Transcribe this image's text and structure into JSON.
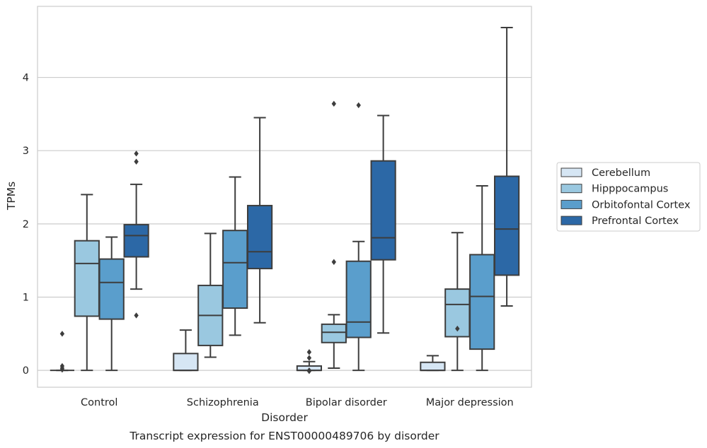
{
  "chart_data": {
    "type": "box",
    "caption": "Transcript expression for ENST00000489706 by disorder",
    "xlabel": "Disorder",
    "ylabel": "TPMs",
    "ylim": [
      -0.23,
      4.97
    ],
    "yticks": [
      0,
      1,
      2,
      3,
      4
    ],
    "grid": "horizontal",
    "legend_position": "right",
    "categories": [
      "Control",
      "Schizophrenia",
      "Bipolar disorder",
      "Major depression"
    ],
    "series": [
      {
        "name": "Cerebellum",
        "color": "#d6e6f4",
        "boxes": [
          {
            "category": "Control",
            "whisker_low": 0,
            "q1": 0,
            "median": 0,
            "q3": 0,
            "whisker_high": 0,
            "outliers": [
              0.5,
              0.06,
              0.03,
              0.01
            ]
          },
          {
            "category": "Schizophrenia",
            "whisker_low": 0,
            "q1": 0,
            "median": 0,
            "q3": 0.23,
            "whisker_high": 0.55,
            "outliers": []
          },
          {
            "category": "Bipolar disorder",
            "whisker_low": 0,
            "q1": 0,
            "median": 0,
            "q3": 0.06,
            "whisker_high": 0.12,
            "outliers": [
              0.25,
              0.17,
              0,
              -0.01
            ]
          },
          {
            "category": "Major depression",
            "whisker_low": 0,
            "q1": 0,
            "median": 0,
            "q3": 0.11,
            "whisker_high": 0.2,
            "outliers": []
          }
        ]
      },
      {
        "name": "Hipppocampus",
        "color": "#9ac8e0",
        "boxes": [
          {
            "category": "Control",
            "whisker_low": 0,
            "q1": 0.74,
            "median": 1.46,
            "q3": 1.77,
            "whisker_high": 2.4,
            "outliers": []
          },
          {
            "category": "Schizophrenia",
            "whisker_low": 0.18,
            "q1": 0.34,
            "median": 0.75,
            "q3": 1.16,
            "whisker_high": 1.87,
            "outliers": []
          },
          {
            "category": "Bipolar disorder",
            "whisker_low": 0.03,
            "q1": 0.38,
            "median": 0.52,
            "q3": 0.63,
            "whisker_high": 0.76,
            "outliers": [
              1.48,
              3.64
            ]
          },
          {
            "category": "Major depression",
            "whisker_low": 0,
            "q1": 0.46,
            "median": 0.9,
            "q3": 1.11,
            "whisker_high": 1.88,
            "outliers": [
              0.57
            ]
          }
        ]
      },
      {
        "name": "Orbitofontal Cortex",
        "color": "#5a9ecc",
        "boxes": [
          {
            "category": "Control",
            "whisker_low": 0,
            "q1": 0.7,
            "median": 1.2,
            "q3": 1.52,
            "whisker_high": 1.82,
            "outliers": []
          },
          {
            "category": "Schizophrenia",
            "whisker_low": 0.48,
            "q1": 0.85,
            "median": 1.47,
            "q3": 1.91,
            "whisker_high": 2.64,
            "outliers": []
          },
          {
            "category": "Bipolar disorder",
            "whisker_low": 0,
            "q1": 0.45,
            "median": 0.66,
            "q3": 1.49,
            "whisker_high": 1.76,
            "outliers": [
              3.62
            ]
          },
          {
            "category": "Major depression",
            "whisker_low": 0,
            "q1": 0.29,
            "median": 1.01,
            "q3": 1.58,
            "whisker_high": 2.52,
            "outliers": []
          }
        ]
      },
      {
        "name": "Prefrontal Cortex",
        "color": "#2c68a6",
        "boxes": [
          {
            "category": "Control",
            "whisker_low": 1.11,
            "q1": 1.55,
            "median": 1.84,
            "q3": 1.99,
            "whisker_high": 2.54,
            "outliers": [
              0.75,
              2.85,
              2.96
            ]
          },
          {
            "category": "Schizophrenia",
            "whisker_low": 0.65,
            "q1": 1.39,
            "median": 1.62,
            "q3": 2.25,
            "whisker_high": 3.45,
            "outliers": []
          },
          {
            "category": "Bipolar disorder",
            "whisker_low": 0.51,
            "q1": 1.51,
            "median": 1.81,
            "q3": 2.86,
            "whisker_high": 3.48,
            "outliers": []
          },
          {
            "category": "Major depression",
            "whisker_low": 0.88,
            "q1": 1.3,
            "median": 1.93,
            "q3": 2.65,
            "whisker_high": 4.68,
            "outliers": []
          }
        ]
      }
    ]
  }
}
